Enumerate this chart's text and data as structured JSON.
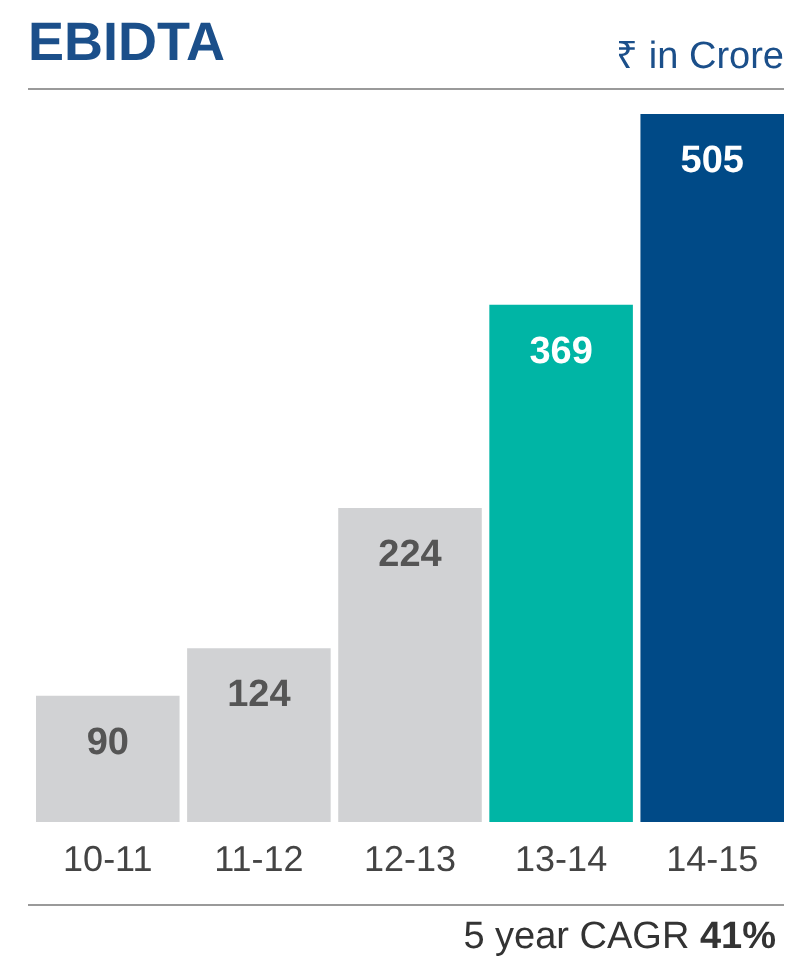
{
  "chart_data": {
    "type": "bar",
    "title": "EBIDTA",
    "subtitle": "₹ in Crore",
    "categories": [
      "10-11",
      "11-12",
      "12-13",
      "13-14",
      "14-15"
    ],
    "values": [
      90,
      124,
      224,
      369,
      505
    ],
    "colors": [
      "#d1d2d4",
      "#d1d2d4",
      "#d1d2d4",
      "#00b5a5",
      "#004a87"
    ],
    "data_labels": true,
    "annotations": [
      "5 year CAGR 41%"
    ]
  }
}
